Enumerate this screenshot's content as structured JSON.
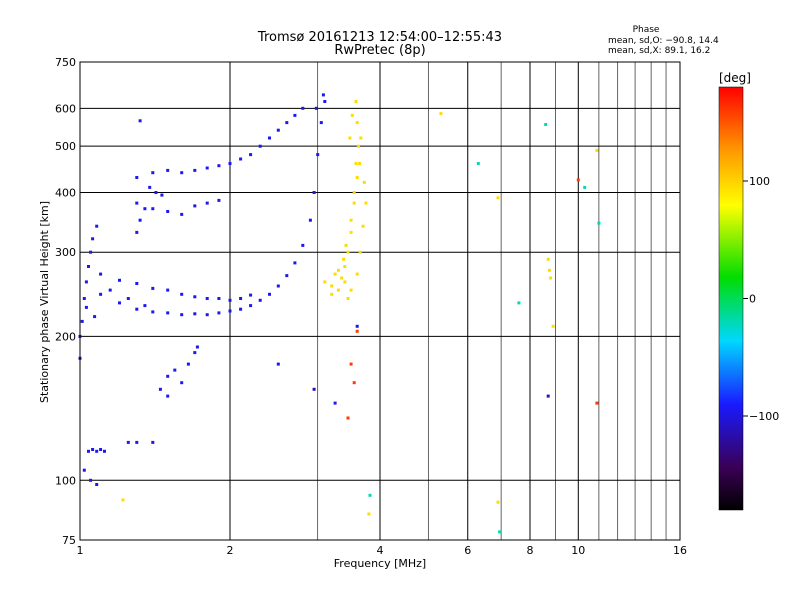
{
  "chart_data": {
    "type": "scatter",
    "title": "Tromsø 20161213 12:54:00–12:55:43",
    "subtitle": "RwPretec (8p)",
    "xlabel": "Frequency [MHz]",
    "ylabel": "Stationary phase Virtual Height [km]",
    "x_scale": "log",
    "y_scale": "log",
    "xlim": [
      1,
      16
    ],
    "ylim": [
      75,
      750
    ],
    "x_ticks": [
      1,
      2,
      4,
      6,
      8,
      10,
      16
    ],
    "x_tick_labels": [
      "1",
      "2",
      "4",
      "6",
      "8",
      "10",
      "16"
    ],
    "y_ticks": [
      75,
      100,
      200,
      300,
      400,
      500,
      600,
      750
    ],
    "y_tick_labels": [
      "75",
      "100",
      "200",
      "300",
      "400",
      "500",
      "600",
      "750"
    ],
    "phase_box": {
      "title": "Phase",
      "line_o": "mean, sd,O: −90.8, 14.4",
      "line_x": "mean, sd,X:  89.1, 16.2"
    },
    "colorbar": {
      "label": "[deg]",
      "range": [
        -180,
        180
      ],
      "ticks": [
        100,
        0,
        -100
      ],
      "tick_labels": [
        "100",
        "0",
        "−100"
      ]
    },
    "series": [
      {
        "mode": "O",
        "phase_deg": -95,
        "points": [
          [
            1.0,
            180
          ],
          [
            1.0,
            200
          ],
          [
            1.01,
            215
          ],
          [
            1.02,
            240
          ],
          [
            1.03,
            260
          ],
          [
            1.04,
            280
          ],
          [
            1.05,
            300
          ],
          [
            1.06,
            320
          ],
          [
            1.08,
            340
          ],
          [
            1.03,
            230
          ],
          [
            1.07,
            220
          ],
          [
            1.1,
            245
          ],
          [
            1.15,
            250
          ],
          [
            1.2,
            235
          ],
          [
            1.25,
            240
          ],
          [
            1.3,
            228
          ],
          [
            1.35,
            232
          ],
          [
            1.4,
            225
          ],
          [
            1.5,
            224
          ],
          [
            1.6,
            222
          ],
          [
            1.7,
            223
          ],
          [
            1.8,
            222
          ],
          [
            1.9,
            224
          ],
          [
            2.0,
            226
          ],
          [
            2.1,
            228
          ],
          [
            2.2,
            232
          ],
          [
            2.3,
            238
          ],
          [
            2.4,
            245
          ],
          [
            2.5,
            255
          ],
          [
            2.6,
            268
          ],
          [
            2.7,
            285
          ],
          [
            2.8,
            310
          ],
          [
            2.9,
            350
          ],
          [
            2.95,
            400
          ],
          [
            3.0,
            480
          ],
          [
            3.05,
            560
          ],
          [
            3.1,
            620
          ],
          [
            2.98,
            600
          ],
          [
            3.08,
            640
          ],
          [
            1.1,
            270
          ],
          [
            1.2,
            262
          ],
          [
            1.3,
            258
          ],
          [
            1.4,
            252
          ],
          [
            1.5,
            250
          ],
          [
            1.6,
            245
          ],
          [
            1.7,
            242
          ],
          [
            1.8,
            240
          ],
          [
            1.9,
            240
          ],
          [
            2.0,
            238
          ],
          [
            2.1,
            240
          ],
          [
            2.2,
            244
          ],
          [
            1.3,
            430
          ],
          [
            1.4,
            440
          ],
          [
            1.5,
            445
          ],
          [
            1.6,
            440
          ],
          [
            1.7,
            445
          ],
          [
            1.8,
            450
          ],
          [
            1.9,
            455
          ],
          [
            2.0,
            460
          ],
          [
            2.1,
            470
          ],
          [
            2.2,
            480
          ],
          [
            2.3,
            500
          ],
          [
            2.4,
            520
          ],
          [
            2.5,
            540
          ],
          [
            2.6,
            560
          ],
          [
            2.7,
            580
          ],
          [
            2.8,
            600
          ],
          [
            1.4,
            370
          ],
          [
            1.5,
            365
          ],
          [
            1.6,
            360
          ],
          [
            1.7,
            375
          ],
          [
            1.8,
            380
          ],
          [
            1.9,
            385
          ],
          [
            1.3,
            380
          ],
          [
            1.35,
            370
          ],
          [
            1.3,
            330
          ],
          [
            1.32,
            350
          ],
          [
            1.04,
            115
          ],
          [
            1.08,
            115
          ],
          [
            1.12,
            115
          ],
          [
            1.06,
            116
          ],
          [
            1.1,
            116
          ],
          [
            1.25,
            120
          ],
          [
            1.3,
            120
          ],
          [
            1.4,
            120
          ],
          [
            1.02,
            105
          ],
          [
            1.05,
            100
          ],
          [
            1.08,
            98
          ],
          [
            1.45,
            155
          ],
          [
            1.5,
            150
          ],
          [
            1.5,
            165
          ],
          [
            1.55,
            170
          ],
          [
            1.6,
            160
          ],
          [
            1.65,
            175
          ],
          [
            1.7,
            185
          ],
          [
            1.72,
            190
          ],
          [
            1.32,
            565
          ],
          [
            1.38,
            410
          ],
          [
            1.42,
            400
          ],
          [
            1.46,
            395
          ],
          [
            2.5,
            175
          ],
          [
            3.25,
            145
          ],
          [
            3.6,
            210
          ]
        ]
      },
      {
        "mode": "X",
        "phase_deg": 95,
        "points": [
          [
            3.1,
            260
          ],
          [
            3.2,
            255
          ],
          [
            3.3,
            250
          ],
          [
            3.35,
            265
          ],
          [
            3.4,
            280
          ],
          [
            3.45,
            300
          ],
          [
            3.5,
            330
          ],
          [
            3.55,
            380
          ],
          [
            3.6,
            430
          ],
          [
            3.62,
            500
          ],
          [
            3.6,
            560
          ],
          [
            3.58,
            620
          ],
          [
            3.25,
            270
          ],
          [
            3.3,
            275
          ],
          [
            3.38,
            290
          ],
          [
            3.42,
            310
          ],
          [
            3.5,
            350
          ],
          [
            3.55,
            400
          ],
          [
            3.58,
            460
          ],
          [
            3.52,
            580
          ],
          [
            3.48,
            520
          ],
          [
            3.2,
            245
          ],
          [
            3.4,
            260
          ],
          [
            3.45,
            240
          ],
          [
            3.5,
            250
          ],
          [
            3.6,
            270
          ],
          [
            3.65,
            300
          ],
          [
            3.7,
            340
          ],
          [
            3.75,
            380
          ],
          [
            3.72,
            420
          ],
          [
            3.64,
            460
          ],
          [
            3.66,
            520
          ],
          [
            5.3,
            585
          ],
          [
            6.9,
            390
          ],
          [
            8.7,
            290
          ],
          [
            8.75,
            275
          ],
          [
            8.8,
            265
          ],
          [
            8.9,
            210
          ],
          [
            10.9,
            490
          ],
          [
            3.8,
            85
          ],
          [
            1.22,
            91
          ],
          [
            6.9,
            90
          ]
        ]
      },
      {
        "mode": "scattered",
        "phase_deg": -20,
        "points": [
          [
            6.3,
            460
          ],
          [
            7.6,
            235
          ],
          [
            3.82,
            93
          ],
          [
            6.95,
            78
          ],
          [
            11.0,
            345
          ],
          [
            10.3,
            410
          ],
          [
            8.6,
            555
          ]
        ]
      },
      {
        "mode": "scattered",
        "phase_deg": -110,
        "points": [
          [
            8.7,
            150
          ],
          [
            2.95,
            155
          ]
        ]
      },
      {
        "mode": "scattered",
        "phase_deg": 160,
        "points": [
          [
            10.9,
            145
          ],
          [
            3.6,
            205
          ],
          [
            10.0,
            425
          ],
          [
            3.45,
            135
          ],
          [
            3.5,
            175
          ],
          [
            3.55,
            160
          ]
        ]
      }
    ]
  }
}
